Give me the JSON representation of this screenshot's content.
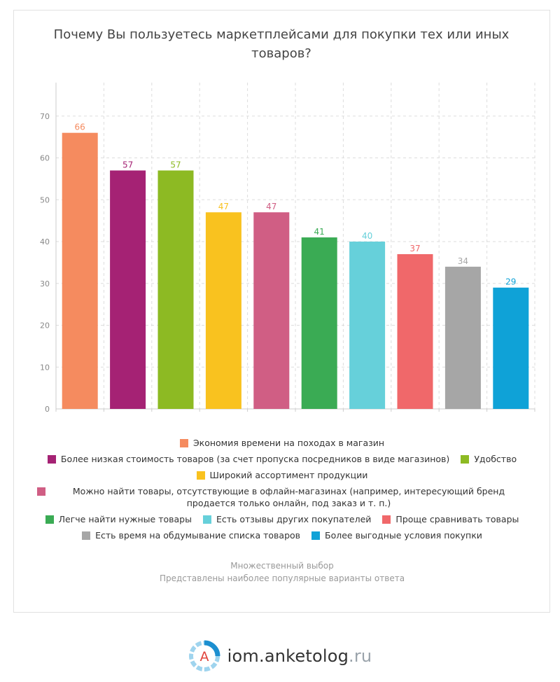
{
  "title": "Почему Вы пользуетесь маркетплейсами для покупки тех или иных товаров?",
  "chart_data": {
    "type": "bar",
    "title": "Почему Вы пользуетесь маркетплейсами для покупки тех или иных товаров?",
    "ylim": [
      0,
      78
    ],
    "yticks": [
      0,
      10,
      20,
      30,
      40,
      50,
      60,
      70
    ],
    "grid": true,
    "legend_position": "bottom",
    "series": [
      {
        "name": "Экономия времени на походах в магазин",
        "value": 66,
        "color": "#F58B5F"
      },
      {
        "name": "Более низкая стоимость товаров (за счет пропуска посредников в виде магазинов)",
        "value": 57,
        "color": "#A52274"
      },
      {
        "name": "Удобство",
        "value": 57,
        "color": "#8DBA23"
      },
      {
        "name": "Широкий ассортимент продукции",
        "value": 47,
        "color": "#F9C21F"
      },
      {
        "name": "Можно найти товары, отсутствующие в офлайн-магазинах (например, интересующий бренд продается только онлайн, под заказ и т. п.)",
        "value": 47,
        "color": "#D05E84"
      },
      {
        "name": "Легче найти нужные товары",
        "value": 41,
        "color": "#3AAB54"
      },
      {
        "name": "Есть отзывы других покупателей",
        "value": 40,
        "color": "#66D0DA"
      },
      {
        "name": "Проще сравнивать товары",
        "value": 37,
        "color": "#F0686A"
      },
      {
        "name": "Есть время на обдумывание списка товаров",
        "value": 34,
        "color": "#A6A6A6"
      },
      {
        "name": "Более выгодные условия покупки",
        "value": 29,
        "color": "#0FA2D7"
      }
    ]
  },
  "legend_rows": [
    [
      0
    ],
    [
      1,
      2
    ],
    [
      3
    ],
    [
      4
    ],
    [
      5,
      6,
      7
    ],
    [
      8,
      9
    ]
  ],
  "notes": {
    "line1": "Множественный выбор",
    "line2": "Представлены наиболее популярные варианты ответа"
  },
  "brand": {
    "logo_letter": "A",
    "name": "iom.anketolog",
    "tld": ".ru"
  },
  "colors": {
    "grid": "#dddddd",
    "axis_text": "#888888",
    "logo_blue": "#1c8fd0",
    "logo_light": "#9fd4ee",
    "logo_letter": "#e0433b"
  }
}
